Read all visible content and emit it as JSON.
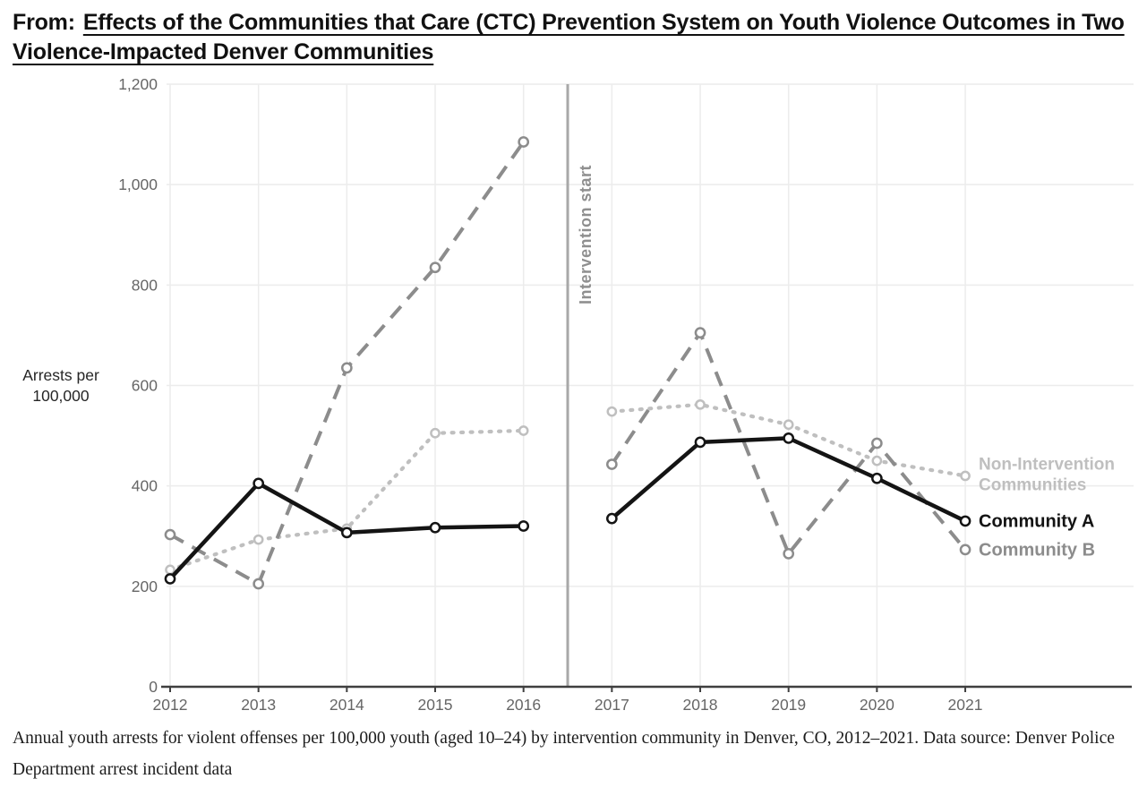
{
  "header": {
    "prefix": "From:",
    "link_text": "Effects of the Communities that Care (CTC) Prevention System on Youth Violence Outcomes in Two Violence-Impacted Denver Communities"
  },
  "chart_data": {
    "type": "line",
    "x": [
      2012,
      2013,
      2014,
      2015,
      2016,
      2017,
      2018,
      2019,
      2020,
      2021
    ],
    "xticks": [
      "2012",
      "2013",
      "2014",
      "2015",
      "2016",
      "2017",
      "2018",
      "2019",
      "2020",
      "2021"
    ],
    "series": [
      {
        "name": "Community A",
        "legend": "Community A",
        "color": "#141414",
        "style": "solid",
        "values": [
          215,
          405,
          307,
          317,
          320,
          335,
          487,
          495,
          415,
          330
        ]
      },
      {
        "name": "Community B",
        "legend": "Community B",
        "color": "#8c8c8c",
        "style": "dashed",
        "values": [
          303,
          205,
          635,
          835,
          1085,
          443,
          705,
          265,
          485,
          273
        ]
      },
      {
        "name": "Non-Intervention Communities",
        "legend_lines": [
          "Non-Intervention",
          "Communities"
        ],
        "color": "#bfbfbf",
        "style": "dotted",
        "values": [
          233,
          293,
          315,
          505,
          510,
          548,
          562,
          522,
          450,
          420
        ]
      }
    ],
    "ylabel_lines": [
      "Arrests per",
      "100,000"
    ],
    "ylim": [
      0,
      1200
    ],
    "ytick_step": 200,
    "grid": true,
    "legend_position": "right-of-last-points",
    "annotation": {
      "label": "Intervention start",
      "x_between": [
        2016,
        2017
      ]
    },
    "gap_after_x": 2016
  },
  "caption": {
    "text": "Annual youth arrests for violent offenses per 100,000 youth (aged 10–24) by intervention community in Denver, CO, 2012–2021. Data source: Denver Police Department arrest incident data"
  }
}
